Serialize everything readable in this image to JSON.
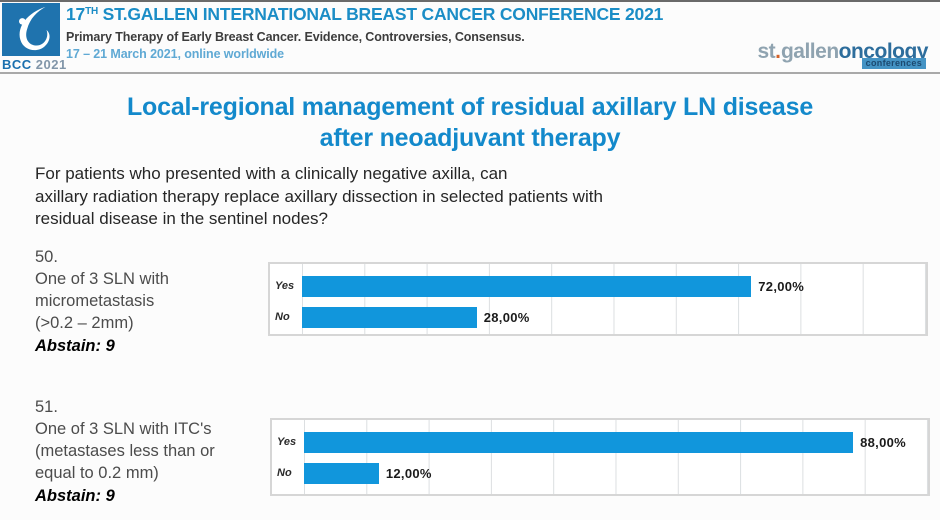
{
  "header": {
    "logo": {
      "badge_label": "BCC",
      "badge_year": "2021",
      "icon": "swan-drop-icon"
    },
    "title_prefix": "17",
    "title_sup": "TH",
    "title_rest": " ST.GALLEN INTERNATIONAL BREAST CANCER CONFERENCE 2021",
    "subtitle": "Primary Therapy of Early Breast Cancer. Evidence, Controversies, Consensus.",
    "dates": "17 – 21 March 2021, online worldwide",
    "brand": {
      "st": "st",
      "dot": ".",
      "gallen": "gallen",
      "oncology": "oncology",
      "badge": "conferences"
    }
  },
  "slide": {
    "title_line1": "Local-regional management of residual axillary LN disease",
    "title_line2": "after neoadjuvant therapy",
    "question_lines": [
      "For patients who presented with a clinically negative axilla, can",
      "axillary radiation therapy replace axillary dissection in selected patients with",
      "residual disease in the sentinel nodes?"
    ]
  },
  "polls": [
    {
      "number": "50.",
      "statement_lines": [
        "One of 3 SLN with",
        "micrometastasis",
        "(>0.2 – 2mm)"
      ],
      "abstain": "Abstain: 9"
    },
    {
      "number": "51.",
      "statement_lines": [
        "One of 3 SLN with ITC's",
        "(metastases less than or",
        "equal to 0.2 mm)"
      ],
      "abstain": "Abstain: 9"
    }
  ],
  "chart_data": [
    {
      "type": "bar",
      "orientation": "horizontal",
      "question": "50",
      "categories": [
        "Yes",
        "No"
      ],
      "values": [
        72,
        28
      ],
      "value_labels": [
        "72,00%",
        "28,00%"
      ],
      "xlim": [
        0,
        100
      ],
      "gridline_step_pct": 10,
      "grid": true,
      "legend": false,
      "bar_color": "#1196dc"
    },
    {
      "type": "bar",
      "orientation": "horizontal",
      "question": "51",
      "categories": [
        "Yes",
        "No"
      ],
      "values": [
        88,
        12
      ],
      "value_labels": [
        "88,00%",
        "12,00%"
      ],
      "xlim": [
        0,
        100
      ],
      "gridline_step_pct": 10,
      "grid": true,
      "legend": false,
      "bar_color": "#1196dc"
    }
  ],
  "colors": {
    "bar_blue": "#1196dc",
    "title_blue": "#1389cb",
    "header_blue": "#1b8dc6",
    "dates_blue": "#5fa9d4",
    "logo_blue": "#1f73ae"
  }
}
